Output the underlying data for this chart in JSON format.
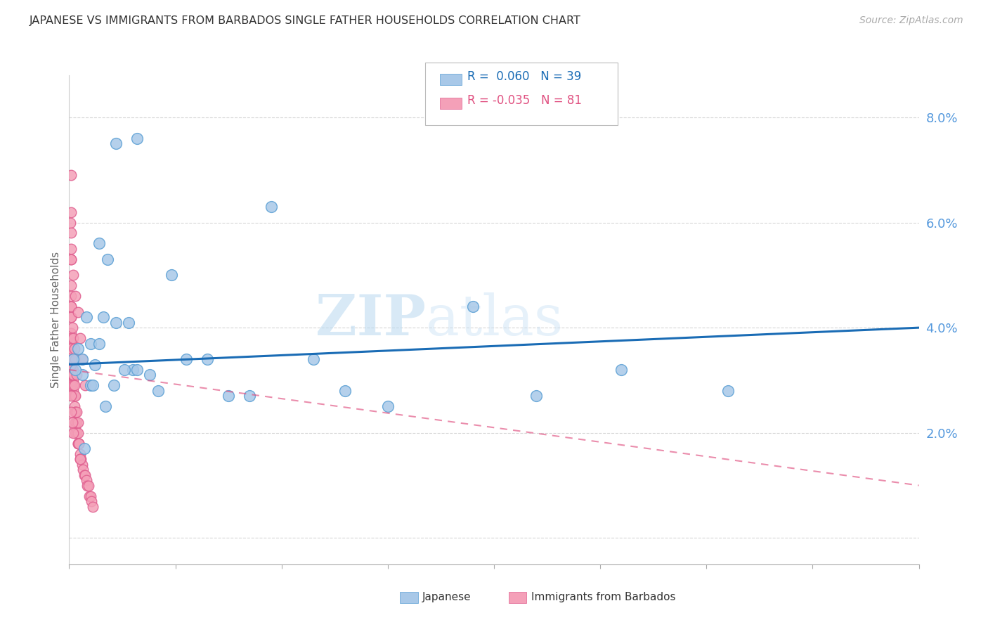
{
  "title": "JAPANESE VS IMMIGRANTS FROM BARBADOS SINGLE FATHER HOUSEHOLDS CORRELATION CHART",
  "source": "Source: ZipAtlas.com",
  "ylabel": "Single Father Households",
  "yticks": [
    0.0,
    0.02,
    0.04,
    0.06,
    0.08
  ],
  "ytick_labels": [
    "",
    "2.0%",
    "4.0%",
    "6.0%",
    "8.0%"
  ],
  "xlim": [
    0,
    0.4
  ],
  "ylim": [
    -0.005,
    0.088
  ],
  "watermark_zip": "ZIP",
  "watermark_atlas": "atlas",
  "blue_color": "#a8c8e8",
  "pink_color": "#f4a0b8",
  "blue_edge_color": "#5a9fd4",
  "pink_edge_color": "#e06090",
  "blue_line_color": "#1a6cb5",
  "pink_line_color": "#e05080",
  "axis_color": "#5599dd",
  "grid_color": "#cccccc",
  "japanese_x": [
    0.022,
    0.032,
    0.004,
    0.006,
    0.008,
    0.01,
    0.012,
    0.014,
    0.016,
    0.006,
    0.01,
    0.014,
    0.018,
    0.022,
    0.028,
    0.03,
    0.038,
    0.048,
    0.055,
    0.065,
    0.075,
    0.085,
    0.095,
    0.115,
    0.13,
    0.15,
    0.003,
    0.007,
    0.011,
    0.017,
    0.021,
    0.026,
    0.032,
    0.19,
    0.22,
    0.26,
    0.31,
    0.002,
    0.042
  ],
  "japanese_y": [
    0.075,
    0.076,
    0.036,
    0.034,
    0.042,
    0.037,
    0.033,
    0.037,
    0.042,
    0.031,
    0.029,
    0.056,
    0.053,
    0.041,
    0.041,
    0.032,
    0.031,
    0.05,
    0.034,
    0.034,
    0.027,
    0.027,
    0.063,
    0.034,
    0.028,
    0.025,
    0.032,
    0.017,
    0.029,
    0.025,
    0.029,
    0.032,
    0.032,
    0.044,
    0.027,
    0.032,
    0.028,
    0.034,
    0.028
  ],
  "barbados_x": [
    0.0005,
    0.001,
    0.001,
    0.001,
    0.001,
    0.001,
    0.001,
    0.001,
    0.001,
    0.001,
    0.0015,
    0.002,
    0.002,
    0.002,
    0.002,
    0.002,
    0.002,
    0.0025,
    0.003,
    0.003,
    0.003,
    0.003,
    0.0035,
    0.004,
    0.004,
    0.0045,
    0.005,
    0.005,
    0.0055,
    0.006,
    0.0065,
    0.007,
    0.0075,
    0.008,
    0.0085,
    0.009,
    0.0095,
    0.01,
    0.0105,
    0.011,
    0.001,
    0.001,
    0.001,
    0.0015,
    0.002,
    0.0025,
    0.003,
    0.0035,
    0.004,
    0.0045,
    0.001,
    0.001,
    0.0015,
    0.002,
    0.0025,
    0.003,
    0.0035,
    0.004,
    0.0045,
    0.005,
    0.001,
    0.001,
    0.001,
    0.0015,
    0.002,
    0.0025,
    0.003,
    0.0035,
    0.001,
    0.001,
    0.002,
    0.003,
    0.004,
    0.005,
    0.006,
    0.0075,
    0.001,
    0.001,
    0.0015,
    0.002,
    0.0008
  ],
  "barbados_y": [
    0.06,
    0.062,
    0.058,
    0.053,
    0.044,
    0.042,
    0.042,
    0.039,
    0.037,
    0.035,
    0.032,
    0.032,
    0.031,
    0.03,
    0.029,
    0.028,
    0.027,
    0.025,
    0.024,
    0.022,
    0.021,
    0.02,
    0.02,
    0.018,
    0.018,
    0.018,
    0.016,
    0.015,
    0.015,
    0.014,
    0.013,
    0.012,
    0.012,
    0.011,
    0.01,
    0.01,
    0.008,
    0.008,
    0.007,
    0.006,
    0.033,
    0.031,
    0.029,
    0.031,
    0.029,
    0.027,
    0.024,
    0.022,
    0.02,
    0.018,
    0.038,
    0.036,
    0.034,
    0.031,
    0.029,
    0.027,
    0.024,
    0.022,
    0.018,
    0.015,
    0.048,
    0.046,
    0.044,
    0.04,
    0.038,
    0.036,
    0.034,
    0.031,
    0.055,
    0.053,
    0.05,
    0.046,
    0.043,
    0.038,
    0.034,
    0.029,
    0.027,
    0.024,
    0.022,
    0.02,
    0.069
  ],
  "blue_trendline_start_y": 0.033,
  "blue_trendline_end_y": 0.04,
  "pink_trendline_start_y": 0.032,
  "pink_trendline_end_y": 0.01
}
